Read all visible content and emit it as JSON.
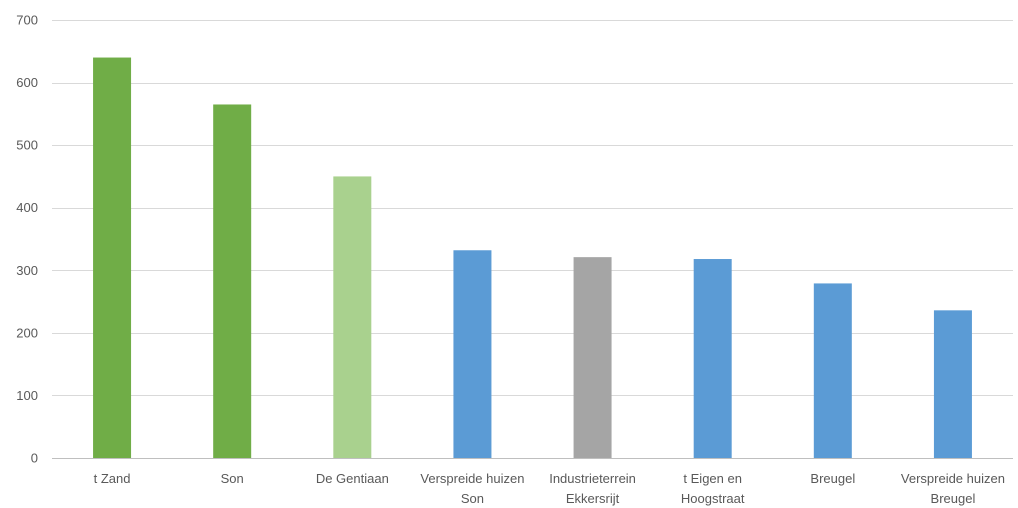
{
  "chart_data": {
    "type": "bar",
    "title": "",
    "xlabel": "",
    "ylabel": "",
    "ylim": [
      0,
      700
    ],
    "yticks": [
      0,
      100,
      200,
      300,
      400,
      500,
      600,
      700
    ],
    "grid": true,
    "legend": "none",
    "categories": [
      [
        "t Zand"
      ],
      [
        "Son"
      ],
      [
        "De Gentiaan"
      ],
      [
        "Verspreide huizen",
        "Son"
      ],
      [
        "Industrieterrein",
        "Ekkersrijt"
      ],
      [
        "t Eigen en",
        "Hoogstraat"
      ],
      [
        "Breugel"
      ],
      [
        "Verspreide huizen",
        "Breugel"
      ]
    ],
    "values": [
      640,
      565,
      450,
      332,
      321,
      318,
      279,
      236
    ],
    "colors": [
      "#70ad47",
      "#70ad47",
      "#a9d18e",
      "#5b9bd5",
      "#a5a5a5",
      "#5b9bd5",
      "#5b9bd5",
      "#5b9bd5"
    ]
  }
}
